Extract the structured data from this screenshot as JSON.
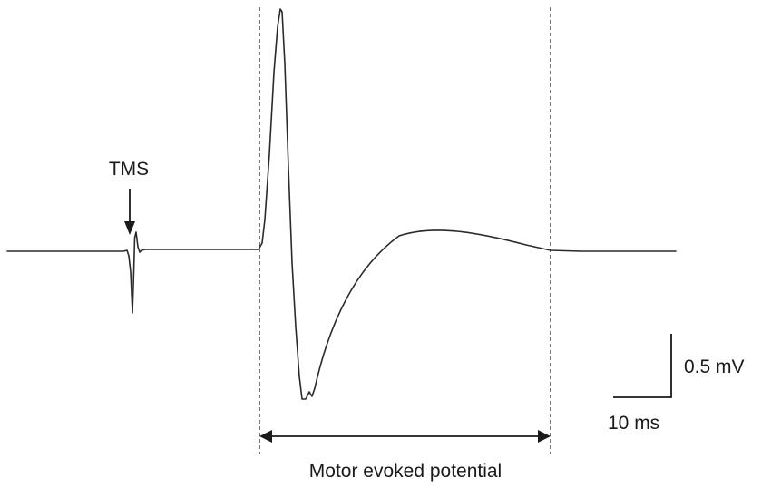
{
  "labels": {
    "stimulus": "TMS",
    "amplitude_scale": "0.5 mV",
    "time_scale": "10 ms",
    "response_window": "Motor evoked potential"
  },
  "colors": {
    "trace": "#2a2a2a",
    "ink": "#1a1a1a",
    "background": "#ffffff"
  }
}
